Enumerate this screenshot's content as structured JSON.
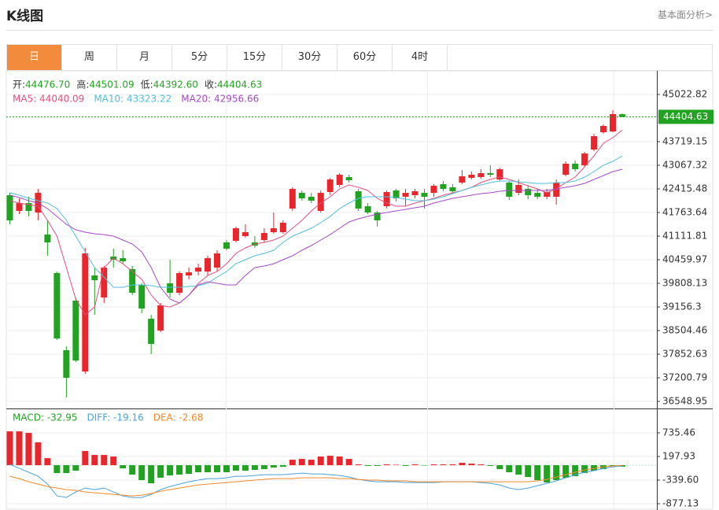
{
  "header": {
    "title": "K线图",
    "link": "基本面分析>"
  },
  "tabs": [
    "日",
    "周",
    "月",
    "5分",
    "15分",
    "30分",
    "60分",
    "4时"
  ],
  "chart_data": [
    {
      "type": "candlestick",
      "legend_names": [
        "开:",
        "高:",
        "低:",
        "收:"
      ],
      "legend_values": [
        "44476.70",
        "44501.09",
        "44392.60",
        "44404.63"
      ],
      "up_color": "#e8262b",
      "down_color": "#21a321",
      "open": [
        42241,
        41807,
        42024,
        41763,
        41155,
        40091,
        37961,
        39330,
        37374,
        40025,
        39417,
        40547,
        40503,
        40199,
        39764,
        38830,
        38504,
        39808,
        39547,
        40025,
        40134,
        40134,
        40242,
        40938,
        40981,
        41112,
        40938,
        41003,
        41220,
        41220,
        41872,
        42306,
        42198,
        41807,
        42328,
        42524,
        42741,
        42350,
        41937,
        41763,
        41937,
        42372,
        42198,
        42241,
        42306,
        42306,
        42546,
        42459,
        42589,
        42719,
        42741,
        42850,
        42676,
        42589,
        42306,
        42415,
        42306,
        42198,
        42198,
        42806,
        43111,
        43067,
        43502,
        43979,
        44001,
        44476.7
      ],
      "high": [
        42306,
        42154,
        42198,
        42415,
        41546,
        40134,
        38070,
        39417,
        40786,
        40242,
        40286,
        40764,
        40721,
        40286,
        39808,
        38939,
        39265,
        40460,
        40134,
        40242,
        40351,
        40569,
        40721,
        41003,
        41372,
        41438,
        41112,
        41329,
        41763,
        41546,
        42459,
        42372,
        42306,
        42372,
        42719,
        42850,
        42806,
        42415,
        42024,
        41807,
        42372,
        42415,
        42415,
        42415,
        42415,
        42546,
        42632,
        42546,
        42937,
        42893,
        42959,
        43067,
        43002,
        42632,
        42676,
        42502,
        42415,
        42415,
        42676,
        43175,
        43197,
        43436,
        43936,
        44197,
        44588,
        44501.09
      ],
      "low": [
        41438,
        41720,
        41655,
        41546,
        40569,
        38243,
        36657,
        37635,
        37309,
        38939,
        39265,
        40242,
        40351,
        39482,
        38983,
        37852,
        38461,
        39417,
        39482,
        39917,
        40025,
        40025,
        40134,
        40721,
        40938,
        41068,
        40786,
        40938,
        41177,
        41177,
        41807,
        42089,
        42024,
        41763,
        42241,
        42459,
        42589,
        41807,
        41720,
        41372,
        41872,
        42067,
        41937,
        42154,
        41872,
        42198,
        42350,
        42285,
        42546,
        42676,
        42697,
        42741,
        42632,
        42111,
        42241,
        42132,
        42132,
        42132,
        41981,
        42763,
        42893,
        43024,
        43458,
        43936,
        43979,
        44392.6
      ],
      "close": [
        41546,
        42024,
        41807,
        42306,
        40938,
        38287,
        37201,
        37679,
        40634,
        39895,
        40242,
        40460,
        40416,
        39547,
        39113,
        38135,
        39200,
        39547,
        40091,
        40112,
        40242,
        40503,
        40634,
        40764,
        41329,
        41220,
        40851,
        41198,
        41329,
        41481,
        42415,
        42154,
        42089,
        42306,
        42676,
        42806,
        42654,
        41872,
        41763,
        41546,
        42328,
        42154,
        42306,
        42350,
        42198,
        42502,
        42415,
        42350,
        42763,
        42806,
        42850,
        42806,
        42959,
        42198,
        42524,
        42241,
        42198,
        42328,
        42589,
        43111,
        42959,
        43393,
        43871,
        44153,
        44480,
        44404.63
      ],
      "series": [
        {
          "name": "MA5",
          "legend_label": "MA5: 44040.09",
          "color": "#e2507c",
          "values": [
            42089,
            42024,
            41981,
            41937,
            41546,
            41111,
            40242,
            39373,
            38938,
            39155,
            40242,
            40503,
            40350,
            40133,
            39916,
            39481,
            39199,
            39155,
            39264,
            39481,
            39807,
            40024,
            40133,
            40350,
            40633,
            40785,
            40894,
            40937,
            41002,
            41111,
            41328,
            41546,
            41806,
            42024,
            42197,
            42415,
            42523,
            42458,
            42371,
            42154,
            42024,
            41937,
            41937,
            42024,
            42089,
            42154,
            42241,
            42306,
            42371,
            42458,
            42589,
            42676,
            42741,
            42676,
            42589,
            42502,
            42415,
            42306,
            42415,
            42589,
            42741,
            43023,
            43327,
            43675,
            43827,
            44040.09
          ]
        },
        {
          "name": "MA10",
          "legend_label": "MA10: 43323.22",
          "color": "#4fc0da",
          "values": [
            42306,
            42241,
            42154,
            42089,
            42024,
            41872,
            41546,
            41111,
            40676,
            40242,
            39981,
            39699,
            39699,
            39764,
            39764,
            39742,
            39699,
            39699,
            39699,
            39720,
            39742,
            39807,
            39981,
            40133,
            40350,
            40459,
            40568,
            40633,
            40720,
            40937,
            41111,
            41220,
            41328,
            41480,
            41654,
            41872,
            42024,
            42154,
            42197,
            42197,
            42197,
            42176,
            42132,
            42089,
            42089,
            42132,
            42197,
            42284,
            42371,
            42458,
            42523,
            42589,
            42632,
            42632,
            42610,
            42589,
            42567,
            42567,
            42589,
            42589,
            42632,
            42741,
            42893,
            43067,
            43175,
            43323.22
          ]
        },
        {
          "name": "MA20",
          "legend_label": "MA20: 42956.66",
          "color": "#a64ac6",
          "values": [
            42241,
            42176,
            42089,
            42024,
            41872,
            41654,
            41437,
            41285,
            41220,
            41176,
            41154,
            41111,
            41002,
            40894,
            40676,
            40242,
            39699,
            39373,
            39264,
            39481,
            39764,
            39851,
            39807,
            39764,
            39764,
            40024,
            40242,
            40285,
            40350,
            40459,
            40568,
            40720,
            40850,
            41002,
            41154,
            41328,
            41502,
            41589,
            41654,
            41719,
            41763,
            41806,
            41850,
            41893,
            41937,
            42024,
            42089,
            42154,
            42197,
            42241,
            42284,
            42306,
            42350,
            42371,
            42371,
            42371,
            42371,
            42371,
            42415,
            42458,
            42502,
            42567,
            42676,
            42784,
            42893,
            42956.66
          ]
        }
      ],
      "ylim": [
        36375,
        45631
      ],
      "yticks": [
        45022.82,
        43719.15,
        43067.32,
        42415.48,
        41763.64,
        41111.81,
        40459.97,
        39808.13,
        39156.3,
        38504.46,
        37852.63,
        37200.79,
        36548.95
      ],
      "grid": true
    },
    {
      "type": "macd",
      "histogram": {
        "name": "MACD",
        "legend_label": "MACD: -32.95",
        "color": "#21a321",
        "up_color": "#e8262b",
        "down_color": "#21a321",
        "values": [
          770,
          770,
          735,
          520,
          161,
          -179,
          -179,
          -125,
          323,
          233,
          233,
          197,
          -72,
          -215,
          -340,
          -412,
          -287,
          -233,
          -215,
          -197,
          -161,
          -161,
          -161,
          -161,
          -125,
          -125,
          -108,
          -90,
          -54,
          -36,
          125,
          143,
          125,
          197,
          215,
          197,
          143,
          18,
          -18,
          -18,
          18,
          10,
          -18,
          18,
          -9,
          18,
          18,
          18,
          54,
          36,
          18,
          -18,
          -90,
          -161,
          -215,
          -269,
          -340,
          -394,
          -340,
          -287,
          -251,
          -179,
          -125,
          -90,
          -18,
          -32.95
        ]
      },
      "series": [
        {
          "name": "DIFF",
          "legend_label": "DIFF: -19.16",
          "color": "#4aa3df",
          "values": [
            18,
            -72,
            -161,
            -251,
            -430,
            -699,
            -735,
            -609,
            -520,
            -556,
            -520,
            -609,
            -699,
            -735,
            -735,
            -663,
            -556,
            -484,
            -430,
            -376,
            -340,
            -305,
            -305,
            -287,
            -251,
            -251,
            -233,
            -215,
            -215,
            -215,
            -197,
            -179,
            -197,
            -197,
            -215,
            -233,
            -269,
            -323,
            -358,
            -376,
            -376,
            -376,
            -394,
            -394,
            -394,
            -394,
            -376,
            -376,
            -376,
            -376,
            -394,
            -412,
            -448,
            -520,
            -556,
            -520,
            -466,
            -412,
            -358,
            -287,
            -215,
            -161,
            -125,
            -72,
            -36,
            -19.16
          ]
        },
        {
          "name": "DEA",
          "legend_label": "DEA: -2.68",
          "color": "#f0892a",
          "values": [
            -251,
            -305,
            -376,
            -430,
            -484,
            -520,
            -556,
            -573,
            -609,
            -627,
            -645,
            -663,
            -681,
            -699,
            -681,
            -645,
            -591,
            -556,
            -520,
            -484,
            -448,
            -430,
            -412,
            -394,
            -376,
            -358,
            -340,
            -323,
            -305,
            -305,
            -305,
            -287,
            -287,
            -287,
            -287,
            -305,
            -305,
            -323,
            -340,
            -340,
            -358,
            -358,
            -358,
            -376,
            -376,
            -376,
            -376,
            -376,
            -376,
            -376,
            -376,
            -376,
            -376,
            -376,
            -376,
            -376,
            -358,
            -323,
            -269,
            -215,
            -161,
            -108,
            -72,
            -36,
            -18,
            -2.68
          ]
        }
      ],
      "ylim": [
        -1020,
        1273
      ],
      "yticks": [
        735.46,
        197.93,
        {
          "value": -339.6,
          "label": "-339.60"
        },
        -877.13
      ]
    }
  ]
}
